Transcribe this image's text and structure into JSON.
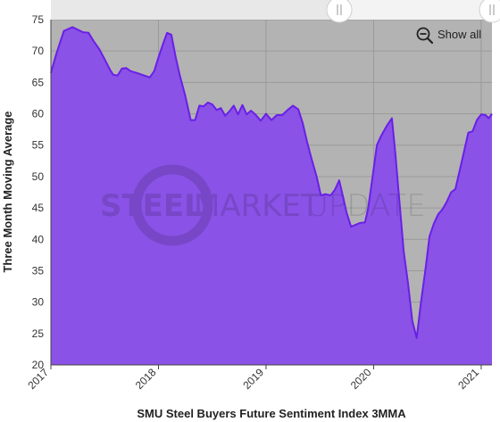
{
  "chart_data": {
    "type": "area",
    "xlabel": "SMU Steel Buyers Future Sentiment Index 3MMA",
    "ylabel": "Three Month Moving Average",
    "ylim": [
      20,
      75
    ],
    "yticks": [
      20,
      25,
      30,
      35,
      40,
      45,
      50,
      55,
      60,
      65,
      70,
      75
    ],
    "xlim": [
      2017.0,
      2021.1
    ],
    "xticks": [
      {
        "value": 2017,
        "label": "2017"
      },
      {
        "value": 2018,
        "label": "2018"
      },
      {
        "value": 2019,
        "label": "2019"
      },
      {
        "value": 2020,
        "label": "2020"
      },
      {
        "value": 2021,
        "label": "2021"
      }
    ],
    "grid": true,
    "legend": "none",
    "colors": {
      "line": "#6a1fe8",
      "fill": "#8a52e6",
      "plot_bg": "#b3b3b3"
    },
    "series": [
      {
        "points": [
          [
            2017.0,
            66.5
          ],
          [
            2017.05,
            69.5
          ],
          [
            2017.12,
            73.2
          ],
          [
            2017.2,
            73.8
          ],
          [
            2017.25,
            73.4
          ],
          [
            2017.3,
            73.0
          ],
          [
            2017.35,
            72.9
          ],
          [
            2017.4,
            71.5
          ],
          [
            2017.45,
            70.3
          ],
          [
            2017.5,
            68.7
          ],
          [
            2017.55,
            67.0
          ],
          [
            2017.58,
            66.2
          ],
          [
            2017.62,
            66.1
          ],
          [
            2017.66,
            67.2
          ],
          [
            2017.7,
            67.3
          ],
          [
            2017.74,
            66.8
          ],
          [
            2017.8,
            66.5
          ],
          [
            2017.85,
            66.2
          ],
          [
            2017.92,
            65.8
          ],
          [
            2017.96,
            66.8
          ],
          [
            2018.0,
            69.0
          ],
          [
            2018.05,
            71.5
          ],
          [
            2018.08,
            72.9
          ],
          [
            2018.12,
            72.6
          ],
          [
            2018.16,
            69.0
          ],
          [
            2018.2,
            66.0
          ],
          [
            2018.25,
            62.8
          ],
          [
            2018.3,
            59.0
          ],
          [
            2018.34,
            59.0
          ],
          [
            2018.38,
            61.3
          ],
          [
            2018.42,
            61.2
          ],
          [
            2018.46,
            61.8
          ],
          [
            2018.5,
            61.5
          ],
          [
            2018.54,
            60.6
          ],
          [
            2018.58,
            60.9
          ],
          [
            2018.62,
            59.7
          ],
          [
            2018.66,
            60.4
          ],
          [
            2018.7,
            61.3
          ],
          [
            2018.74,
            59.9
          ],
          [
            2018.78,
            61.4
          ],
          [
            2018.82,
            59.9
          ],
          [
            2018.86,
            60.5
          ],
          [
            2018.9,
            59.9
          ],
          [
            2018.95,
            58.9
          ],
          [
            2019.0,
            60.0
          ],
          [
            2019.05,
            59.0
          ],
          [
            2019.1,
            59.8
          ],
          [
            2019.15,
            59.8
          ],
          [
            2019.2,
            60.6
          ],
          [
            2019.25,
            61.3
          ],
          [
            2019.3,
            60.7
          ],
          [
            2019.34,
            58.6
          ],
          [
            2019.38,
            55.6
          ],
          [
            2019.42,
            53.0
          ],
          [
            2019.47,
            50.0
          ],
          [
            2019.51,
            47.0
          ],
          [
            2019.55,
            47.2
          ],
          [
            2019.6,
            47.0
          ],
          [
            2019.64,
            47.9
          ],
          [
            2019.68,
            49.4
          ],
          [
            2019.71,
            47.2
          ],
          [
            2019.75,
            44.2
          ],
          [
            2019.79,
            42.0
          ],
          [
            2019.83,
            42.3
          ],
          [
            2019.87,
            42.6
          ],
          [
            2019.92,
            42.7
          ],
          [
            2019.95,
            45.0
          ],
          [
            2019.99,
            50.0
          ],
          [
            2020.03,
            55.0
          ],
          [
            2020.07,
            56.5
          ],
          [
            2020.12,
            58.0
          ],
          [
            2020.17,
            59.3
          ],
          [
            2020.2,
            54.0
          ],
          [
            2020.24,
            46.0
          ],
          [
            2020.28,
            38.0
          ],
          [
            2020.32,
            33.0
          ],
          [
            2020.36,
            27.0
          ],
          [
            2020.4,
            24.3
          ],
          [
            2020.44,
            30.0
          ],
          [
            2020.48,
            35.0
          ],
          [
            2020.52,
            40.5
          ],
          [
            2020.56,
            42.5
          ],
          [
            2020.6,
            44.0
          ],
          [
            2020.64,
            44.8
          ],
          [
            2020.68,
            46.0
          ],
          [
            2020.72,
            47.5
          ],
          [
            2020.76,
            48.0
          ],
          [
            2020.8,
            51.0
          ],
          [
            2020.84,
            54.0
          ],
          [
            2020.88,
            57.0
          ],
          [
            2020.92,
            57.2
          ],
          [
            2020.96,
            59.0
          ],
          [
            2021.0,
            59.9
          ],
          [
            2021.04,
            59.8
          ],
          [
            2021.07,
            59.3
          ],
          [
            2021.1,
            60.0
          ]
        ]
      }
    ]
  },
  "controls": {
    "show_all_label": "Show all",
    "range_start": 0.0,
    "range_end": 1.0
  },
  "watermark": {
    "word1": "STEEL",
    "word2": "MARKET",
    "word3": "UPDATE"
  }
}
